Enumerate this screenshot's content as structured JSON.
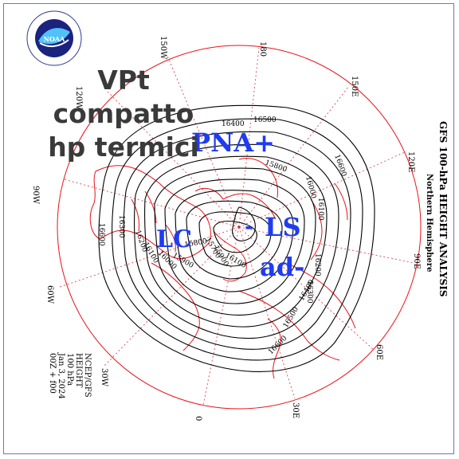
{
  "logo": {
    "emblem_text": "NOAA",
    "ring_text": "NATIONAL OCEANIC AND ATMOSPHERIC ADMINISTRATION U.S. DEPARTMENT OF COMMERCE"
  },
  "overlay": {
    "title_line1": "VPt compatto",
    "title_line2": "hp termici",
    "pna": "PNA+",
    "lc": "LC",
    "ls": "LS",
    "ad": "ad-",
    "dash": "-"
  },
  "map_title": {
    "line1": "GFS 100-hPa HEIGHT ANALYSIS",
    "line2": "Northern Hemisphere"
  },
  "info_block": [
    "NCEP/GFS",
    "HEIGHT",
    "100 hPa",
    "Jan 3, 2024",
    "00Z + f00"
  ],
  "longitudes": {
    "l180": "180",
    "l150e": "150E",
    "l120e": "120E",
    "l90e": "90E",
    "l60e": "60E",
    "l30e": "30E",
    "l0": "0",
    "l30w": "30W",
    "l60w": "60W",
    "l90w": "90W",
    "l120w": "120W",
    "l150w": "150W"
  },
  "contour_labels": {
    "c16500": "16500",
    "c16400": "16400",
    "c16600": "16600",
    "c16100": "16100",
    "c16200": "16200",
    "c16300": "16300",
    "c15800": "15800",
    "c15900": "15900",
    "c16000": "16000",
    "c15700": "15700",
    "c16400b": "16400",
    "c16500b": "16500",
    "c16600b": "16600",
    "c16600c": "16600",
    "c16300b": "16300",
    "c16200b": "16200",
    "c16100b": "16100",
    "c16000b": "16000",
    "c15900b": "15900",
    "c15800b": "15800",
    "c16100c": "16100",
    "c16000c": "16000"
  },
  "colors": {
    "overlay_blue": "#1f3cf0",
    "coast": "#e8121a",
    "grid": "#d9303a",
    "contour": "#000000",
    "frame": "#6b74c9"
  }
}
